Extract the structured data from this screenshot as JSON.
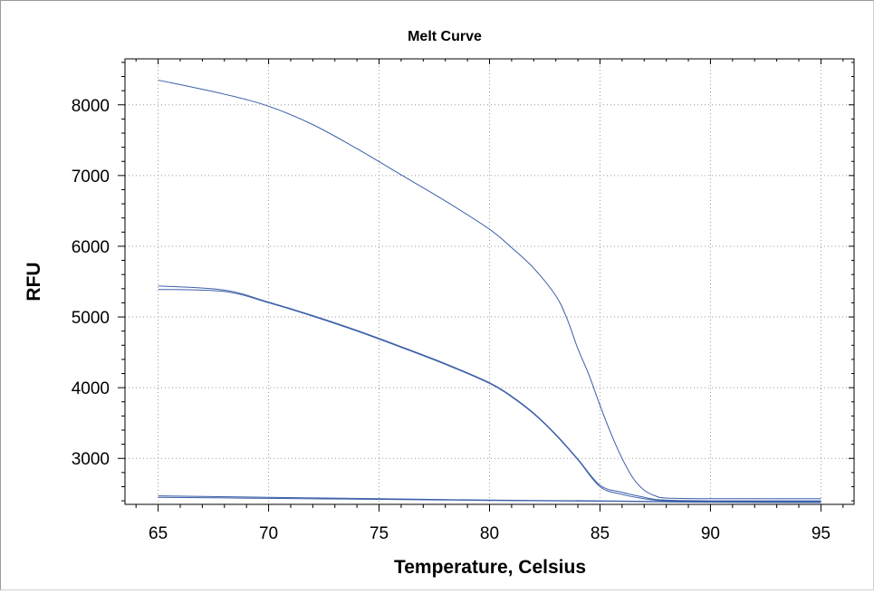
{
  "chart_data": {
    "type": "line",
    "title": "Melt Curve",
    "xlabel": "Temperature, Celsius",
    "ylabel": "RFU",
    "xlim": [
      63.5,
      96.5
    ],
    "ylim": [
      2350,
      8650
    ],
    "xticks": [
      65,
      70,
      75,
      80,
      85,
      90,
      95
    ],
    "yticks": [
      3000,
      4000,
      5000,
      6000,
      7000,
      8000
    ],
    "grid": true,
    "series": [
      {
        "color": "#3b5fa8",
        "x": [
          65,
          68,
          70,
          72,
          74,
          76,
          78,
          80,
          81,
          82,
          83,
          83.5,
          84,
          84.5,
          85,
          85.5,
          86,
          86.5,
          87,
          87.5,
          88,
          90,
          95
        ],
        "y": [
          8350,
          8150,
          7980,
          7720,
          7380,
          7010,
          6640,
          6240,
          5980,
          5690,
          5300,
          4980,
          4550,
          4180,
          3750,
          3350,
          3000,
          2720,
          2550,
          2470,
          2440,
          2430,
          2430
        ]
      },
      {
        "color": "#3b5fa8",
        "x": [
          65,
          68,
          70,
          72,
          74,
          76,
          78,
          80,
          81,
          82,
          83,
          84,
          85,
          86,
          87,
          87.5,
          88,
          90,
          95
        ],
        "y": [
          5440,
          5380,
          5210,
          5020,
          4810,
          4580,
          4340,
          4070,
          3880,
          3640,
          3340,
          2990,
          2620,
          2520,
          2450,
          2420,
          2410,
          2400,
          2400
        ]
      },
      {
        "color": "#3b5fa8",
        "x": [
          65,
          68,
          70,
          72,
          74,
          76,
          78,
          80,
          81,
          82,
          83,
          84,
          85,
          86,
          87,
          87.5,
          88,
          90,
          95
        ],
        "y": [
          5390,
          5360,
          5200,
          5010,
          4800,
          4570,
          4330,
          4060,
          3870,
          3630,
          3330,
          2980,
          2600,
          2490,
          2430,
          2410,
          2400,
          2390,
          2390
        ]
      },
      {
        "color": "#3b5fa8",
        "x": [
          65,
          70,
          75,
          80,
          85,
          88,
          90,
          95
        ],
        "y": [
          2470,
          2450,
          2430,
          2410,
          2400,
          2390,
          2385,
          2380
        ]
      },
      {
        "color": "#3b5fa8",
        "x": [
          65,
          70,
          75,
          80,
          85,
          88,
          90,
          95
        ],
        "y": [
          2450,
          2435,
          2420,
          2405,
          2395,
          2385,
          2380,
          2375
        ]
      }
    ]
  }
}
